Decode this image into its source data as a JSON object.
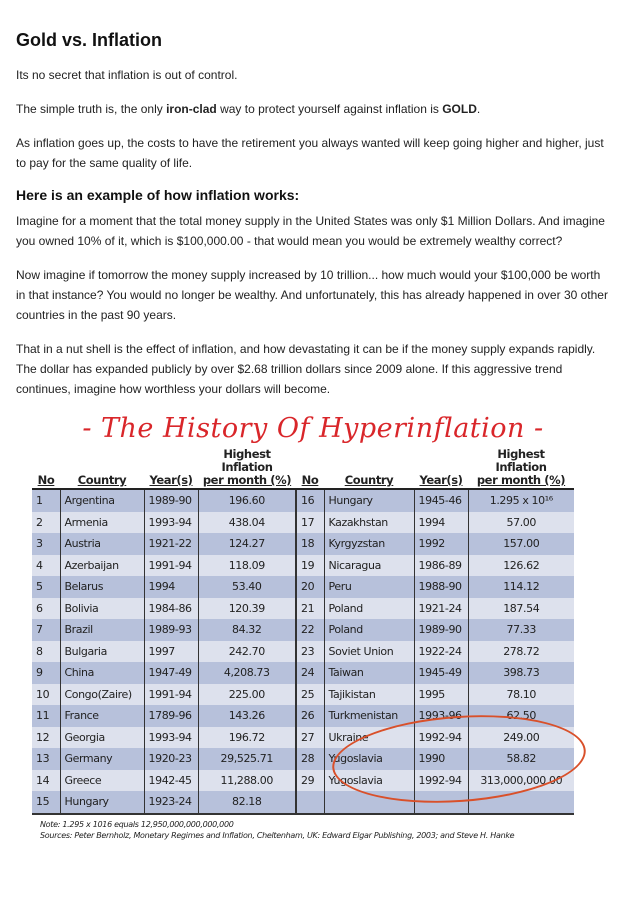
{
  "article": {
    "title": "Gold vs. Inflation",
    "p1": "Its no secret that inflation is out of control.",
    "p2_pre": "The simple truth is, the only ",
    "p2_bold1": "iron-clad",
    "p2_mid": " way to protect yourself against inflation is ",
    "p2_bold2": "GOLD",
    "p2_post": ".",
    "p3": "As inflation goes up, the costs to have the retirement you always wanted will keep going higher and higher, just to pay for the same quality of life.",
    "subheading": "Here is an example of how inflation works:",
    "p4": "Imagine for a moment that the total money supply in the United States was only $1 Million Dollars. And imagine you owned 10% of it, which is $100,000.00 - that would mean you would be extremely wealthy correct?",
    "p5": "Now imagine if tomorrow the money supply increased by 10 trillion... how much would your $100,000 be worth in that instance? You would no longer be wealthy. And unfortunately, this has already happened in over 30 other countries in the past 90 years.",
    "p6": "That in a nut shell is the effect of inflation, and how devastating it can be if the money supply expands rapidly. The dollar has expanded publicly by over $2.68 trillion dollars since 2009 alone. If this aggressive trend continues, imagine how worthless your dollars will become."
  },
  "image": {
    "title": "- The History Of Hyperinflation -",
    "headers": {
      "no": "No",
      "country": "Country",
      "years": "Year(s)",
      "inflation_line1": "Highest Inflation",
      "inflation_line2": "per month (%)"
    },
    "rows": [
      [
        "1",
        "Argentina",
        "1989-90",
        "196.60"
      ],
      [
        "2",
        "Armenia",
        "1993-94",
        "438.04"
      ],
      [
        "3",
        "Austria",
        "1921-22",
        "124.27"
      ],
      [
        "4",
        "Azerbaijan",
        "1991-94",
        "118.09"
      ],
      [
        "5",
        "Belarus",
        "1994",
        "53.40"
      ],
      [
        "6",
        "Bolivia",
        "1984-86",
        "120.39"
      ],
      [
        "7",
        "Brazil",
        "1989-93",
        "84.32"
      ],
      [
        "8",
        "Bulgaria",
        "1997",
        "242.70"
      ],
      [
        "9",
        "China",
        "1947-49",
        "4,208.73"
      ],
      [
        "10",
        "Congo(Zaire)",
        "1991-94",
        "225.00"
      ],
      [
        "11",
        "France",
        "1789-96",
        "143.26"
      ],
      [
        "12",
        "Georgia",
        "1993-94",
        "196.72"
      ],
      [
        "13",
        "Germany",
        "1920-23",
        "29,525.71"
      ],
      [
        "14",
        "Greece",
        "1942-45",
        "11,288.00"
      ],
      [
        "15",
        "Hungary",
        "1923-24",
        "82.18"
      ],
      [
        "16",
        "Hungary",
        "1945-46",
        "1.295 x 10¹⁶"
      ],
      [
        "17",
        "Kazakhstan",
        "1994",
        "57.00"
      ],
      [
        "18",
        "Kyrgyzstan",
        "1992",
        "157.00"
      ],
      [
        "19",
        "Nicaragua",
        "1986-89",
        "126.62"
      ],
      [
        "20",
        "Peru",
        "1988-90",
        "114.12"
      ],
      [
        "21",
        "Poland",
        "1921-24",
        "187.54"
      ],
      [
        "22",
        "Poland",
        "1989-90",
        "77.33"
      ],
      [
        "23",
        "Soviet Union",
        "1922-24",
        "278.72"
      ],
      [
        "24",
        "Taiwan",
        "1945-49",
        "398.73"
      ],
      [
        "25",
        "Tajikistan",
        "1995",
        "78.10"
      ],
      [
        "26",
        "Turkmenistan",
        "1993-96",
        "62.50"
      ],
      [
        "27",
        "Ukraine",
        "1992-94",
        "249.00"
      ],
      [
        "28",
        "Yugoslavia",
        "1990",
        "58.82"
      ],
      [
        "29",
        "Yugoslavia",
        "1992-94",
        "313,000,000.00"
      ]
    ],
    "note": "Note: 1.295 x 1016 equals 12,950,000,000,000,000",
    "sources": "Sources: Peter Bernholz, Monetary Regimes and Inflation, Cheltenham, UK: Edward Elgar Publishing, 2003; and Steve H. Hanke",
    "highlight_color": "#d9502a",
    "title_color": "#d9262a"
  }
}
